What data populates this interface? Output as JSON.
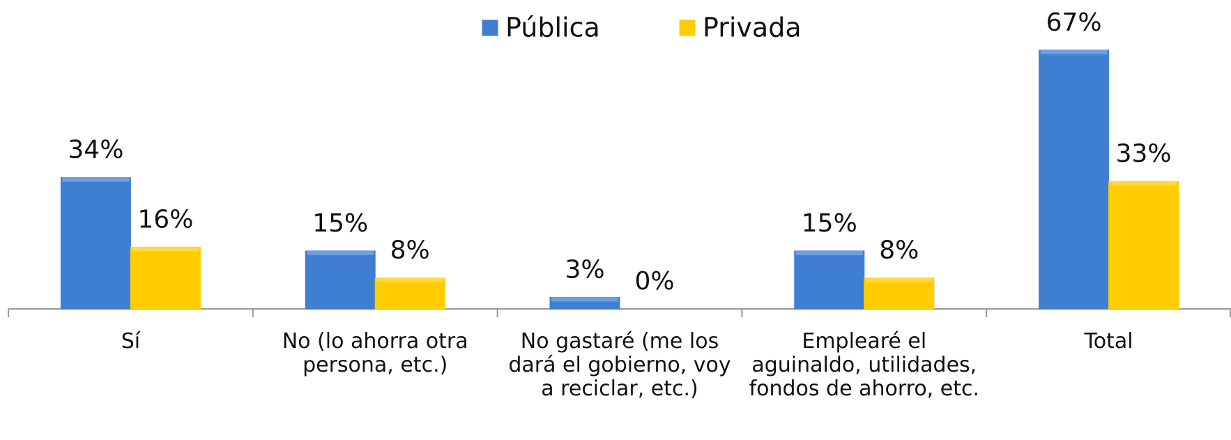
{
  "chart_data": {
    "type": "bar",
    "categories": [
      "Sí",
      "No (lo ahorra otra persona, etc.)",
      "No gastaré (me los dará el gobierno, voy a reciclar, etc.)",
      "Emplearé el aguinaldo, utilidades, fondos de ahorro, etc.",
      "Total"
    ],
    "series": [
      {
        "name": "Pública",
        "color": "#3f7fd2",
        "values": [
          34,
          15,
          3,
          15,
          67
        ],
        "value_labels": [
          "34%",
          "15%",
          "3%",
          "15%",
          "67%"
        ]
      },
      {
        "name": "Privada",
        "color": "#ffcc00",
        "values": [
          16,
          8,
          0,
          8,
          33
        ],
        "value_labels": [
          "16%",
          "8%",
          "0%",
          "8%",
          "33%"
        ]
      }
    ],
    "legend": "top"
  }
}
